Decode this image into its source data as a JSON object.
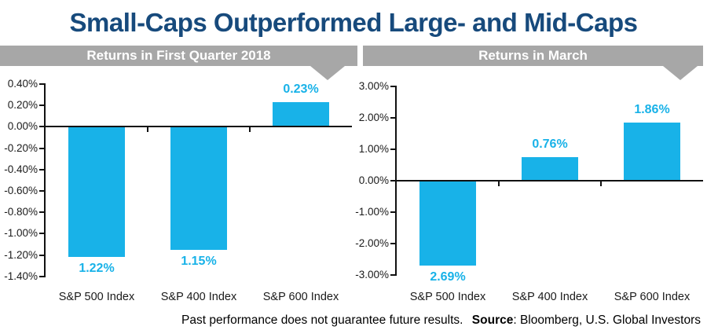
{
  "title": "Small-Caps Outperformed Large- and Mid-Caps",
  "colors": {
    "accent_cyan": "#18B2E8",
    "title_navy": "#174A7C",
    "banner_gray": "#A7A7A7",
    "axis_black": "#111111",
    "tick_text": "#1A1A1A"
  },
  "chart_data": [
    {
      "type": "bar",
      "panel_title": "Returns in First Quarter 2018",
      "categories": [
        "S&P 500 Index",
        "S&P 400 Index",
        "S&P 600 Index"
      ],
      "values": [
        -1.22,
        -1.15,
        0.23
      ],
      "value_labels": [
        "1.22%",
        "1.15%",
        "0.23%"
      ],
      "ytick_labels": [
        "0.40%",
        "0.20%",
        "0.00%",
        "-0.20%",
        "-0.40%",
        "-0.60%",
        "-0.80%",
        "-1.00%",
        "-1.20%",
        "-1.40%"
      ],
      "ylim": [
        -1.4,
        0.4
      ],
      "ytick_step": 0.2,
      "bar_color": "#18B2E8",
      "grid": false,
      "legend": false,
      "xlabel": "",
      "ylabel": ""
    },
    {
      "type": "bar",
      "panel_title": "Returns in March",
      "categories": [
        "S&P 500 Index",
        "S&P 400 Index",
        "S&P 600 Index"
      ],
      "values": [
        -2.69,
        0.76,
        1.86
      ],
      "value_labels": [
        "2.69%",
        "0.76%",
        "1.86%"
      ],
      "ytick_labels": [
        "3.00%",
        "2.00%",
        "1.00%",
        "0.00%",
        "-1.00%",
        "-2.00%",
        "-3.00%"
      ],
      "ylim": [
        -3.0,
        3.0
      ],
      "ytick_step": 1.0,
      "bar_color": "#18B2E8",
      "grid": false,
      "legend": false,
      "xlabel": "",
      "ylabel": ""
    }
  ],
  "footer": {
    "disclaimer": "Past performance does not guarantee future results.",
    "source_label": "Source",
    "source_text": ": Bloomberg, U.S. Global Investors"
  }
}
